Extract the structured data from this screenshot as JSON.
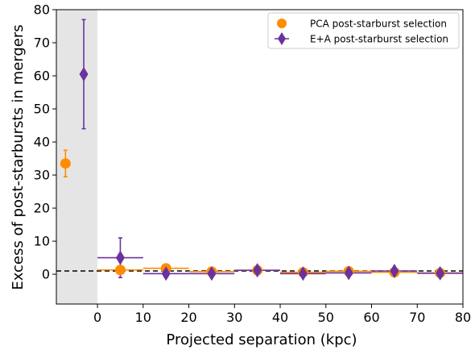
{
  "chart_data": {
    "type": "scatter",
    "title": "",
    "xlabel": "Projected separation (kpc)",
    "ylabel": "Excess of post-starbursts in mergers",
    "xlim": [
      -9,
      80
    ],
    "ylim": [
      -9,
      80
    ],
    "xticks": [
      0,
      10,
      20,
      30,
      40,
      50,
      60,
      70,
      80
    ],
    "yticks": [
      0,
      10,
      20,
      30,
      40,
      50,
      60,
      70,
      80
    ],
    "shaded_region": {
      "x0": -9,
      "x1": 0,
      "color": "#e5e5e5"
    },
    "reference_line": {
      "y": 1,
      "style": "dashed",
      "color": "#000000"
    },
    "grid": false,
    "legend_position": "top-right",
    "series": [
      {
        "name": "PCA post-starburst selection",
        "marker": "circle",
        "color": "#ff8c00",
        "points": [
          {
            "x": -7,
            "y": 33.5,
            "xerr": 0,
            "yerr_low": 4,
            "yerr_high": 4
          },
          {
            "x": 5,
            "y": 1.3,
            "xerr": 5,
            "yerr_low": 0.5,
            "yerr_high": 0.5
          },
          {
            "x": 15,
            "y": 1.8,
            "xerr": 5,
            "yerr_low": 0.3,
            "yerr_high": 0.3
          },
          {
            "x": 25,
            "y": 0.8,
            "xerr": 5,
            "yerr_low": 0.2,
            "yerr_high": 0.2
          },
          {
            "x": 35,
            "y": 1.2,
            "xerr": 5,
            "yerr_low": 0.2,
            "yerr_high": 0.2
          },
          {
            "x": 45,
            "y": 0.6,
            "xerr": 5,
            "yerr_low": 0.2,
            "yerr_high": 0.2
          },
          {
            "x": 55,
            "y": 0.9,
            "xerr": 5,
            "yerr_low": 0.2,
            "yerr_high": 0.2
          },
          {
            "x": 65,
            "y": 0.6,
            "xerr": 5,
            "yerr_low": 0.2,
            "yerr_high": 0.2
          },
          {
            "x": 75,
            "y": 0.4,
            "xerr": 5,
            "yerr_low": 0.2,
            "yerr_high": 0.2
          }
        ]
      },
      {
        "name": "E+A post-starburst selection",
        "marker": "diamond",
        "color": "#6a329f",
        "points": [
          {
            "x": -3,
            "y": 60.5,
            "xerr": 0,
            "yerr_low": 16.5,
            "yerr_high": 16.5
          },
          {
            "x": 5,
            "y": 5,
            "xerr": 5,
            "yerr_low": 6,
            "yerr_high": 6
          },
          {
            "x": 15,
            "y": 0.2,
            "xerr": 5,
            "yerr_low": 1,
            "yerr_high": 1
          },
          {
            "x": 25,
            "y": 0.2,
            "xerr": 5,
            "yerr_low": 1,
            "yerr_high": 1
          },
          {
            "x": 35,
            "y": 1.2,
            "xerr": 5,
            "yerr_low": 0.8,
            "yerr_high": 0.8
          },
          {
            "x": 45,
            "y": 0.2,
            "xerr": 5,
            "yerr_low": 0.8,
            "yerr_high": 0.8
          },
          {
            "x": 55,
            "y": 0.4,
            "xerr": 5,
            "yerr_low": 0.8,
            "yerr_high": 0.8
          },
          {
            "x": 65,
            "y": 1.0,
            "xerr": 5,
            "yerr_low": 0.8,
            "yerr_high": 0.8
          },
          {
            "x": 75,
            "y": 0.3,
            "xerr": 5,
            "yerr_low": 0.8,
            "yerr_high": 0.8
          }
        ]
      }
    ]
  }
}
